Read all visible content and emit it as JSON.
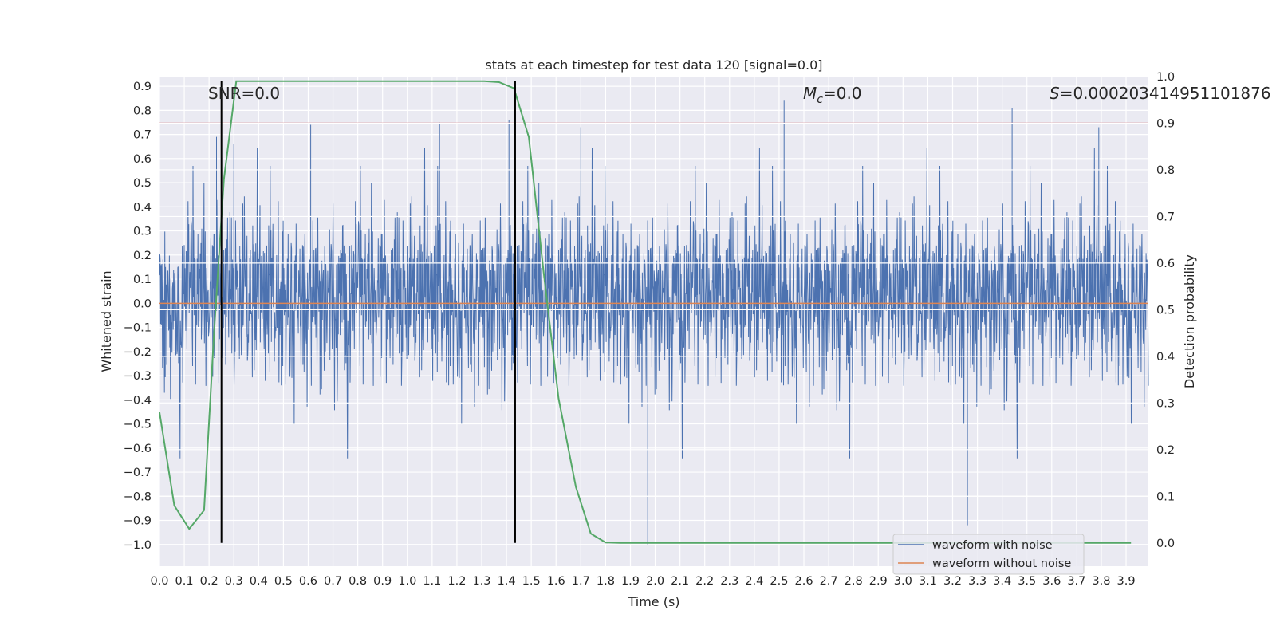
{
  "chart_data": {
    "type": "line",
    "title": "stats at each timestep for test data 120 [signal=0.0]",
    "xlabel": "Time (s)",
    "ylabel_left": "Whitened strain",
    "ylabel_right": "Detection probability",
    "xlim": [
      0.0,
      3.99
    ],
    "ylim_left": [
      -1.09,
      0.94
    ],
    "ylim_right": [
      -0.05,
      1.0
    ],
    "x_ticks": [
      "0.0",
      "0.1",
      "0.2",
      "0.3",
      "0.4",
      "0.5",
      "0.6",
      "0.7",
      "0.8",
      "0.9",
      "1.0",
      "1.1",
      "1.2",
      "1.3",
      "1.4",
      "1.5",
      "1.6",
      "1.7",
      "1.8",
      "1.9",
      "2.0",
      "2.1",
      "2.2",
      "2.3",
      "2.4",
      "2.5",
      "2.6",
      "2.7",
      "2.8",
      "2.9",
      "3.0",
      "3.1",
      "3.2",
      "3.3",
      "3.4",
      "3.5",
      "3.6",
      "3.7",
      "3.8",
      "3.9"
    ],
    "y_ticks_left": [
      "0.9",
      "0.8",
      "0.7",
      "0.6",
      "0.5",
      "0.4",
      "0.3",
      "0.2",
      "0.1",
      "0.0",
      "-0.1",
      "-0.2",
      "-0.3",
      "-0.4",
      "-0.5",
      "-0.6",
      "-0.7",
      "-0.8",
      "-0.9",
      "-1.0"
    ],
    "y_ticks_right": [
      "1.0",
      "0.9",
      "0.8",
      "0.7",
      "0.6",
      "0.5",
      "0.4",
      "0.3",
      "0.2",
      "0.1",
      "0.0"
    ],
    "grid": true,
    "legend_position": "bottom-right",
    "annotations": {
      "snr": "SNR=0.0",
      "mc_symbol": "M",
      "mc_sub": "c",
      "mc_value": "=0.0",
      "s_symbol": "S",
      "s_value": "=0.000203414951101876"
    },
    "series": [
      {
        "name": "waveform with noise",
        "axis": "left",
        "color": "#4c72b0",
        "amplitude_typical": 0.3,
        "amplitude_range": [
          -1.0,
          0.84
        ],
        "sample_rate": 2048,
        "peaks_x": [
          0.23,
          0.3,
          0.61,
          1.13,
          1.41,
          1.7,
          1.97,
          2.52,
          3.26,
          3.44,
          3.79
        ],
        "peaks_y": [
          0.69,
          0.66,
          0.74,
          0.75,
          0.76,
          0.73,
          -1.0,
          0.84,
          -0.92,
          0.81,
          0.73
        ]
      },
      {
        "name": "waveform without noise",
        "axis": "left",
        "color": "#dd8452",
        "x": [
          0.0,
          3.99
        ],
        "y": [
          0.0,
          0.0
        ]
      },
      {
        "name": "",
        "axis": "right",
        "color": "#55a868",
        "x": [
          0.0,
          0.06,
          0.12,
          0.18,
          0.22,
          0.26,
          0.31,
          0.34,
          0.5,
          0.8,
          1.0,
          1.2,
          1.31,
          1.37,
          1.43,
          1.49,
          1.55,
          1.61,
          1.68,
          1.74,
          1.8,
          1.86,
          2.0,
          2.5,
          3.0,
          3.5,
          3.92
        ],
        "y": [
          0.28,
          0.08,
          0.03,
          0.07,
          0.45,
          0.78,
          0.99,
          0.99,
          0.99,
          0.99,
          0.99,
          0.99,
          0.99,
          0.988,
          0.975,
          0.87,
          0.58,
          0.31,
          0.12,
          0.02,
          0.001,
          0.0,
          0.0,
          0.0,
          0.0,
          0.0,
          0.0
        ]
      }
    ],
    "threshold": {
      "axis": "right",
      "value": 0.9,
      "color": "#c44e52"
    },
    "vlines": {
      "x": [
        0.25,
        1.435
      ],
      "y_range_right": [
        0.0,
        0.99
      ],
      "color": "#000000"
    }
  },
  "legend": {
    "items": [
      {
        "label": "waveform with noise",
        "color": "#4c72b0"
      },
      {
        "label": "waveform without noise",
        "color": "#dd8452"
      }
    ]
  }
}
